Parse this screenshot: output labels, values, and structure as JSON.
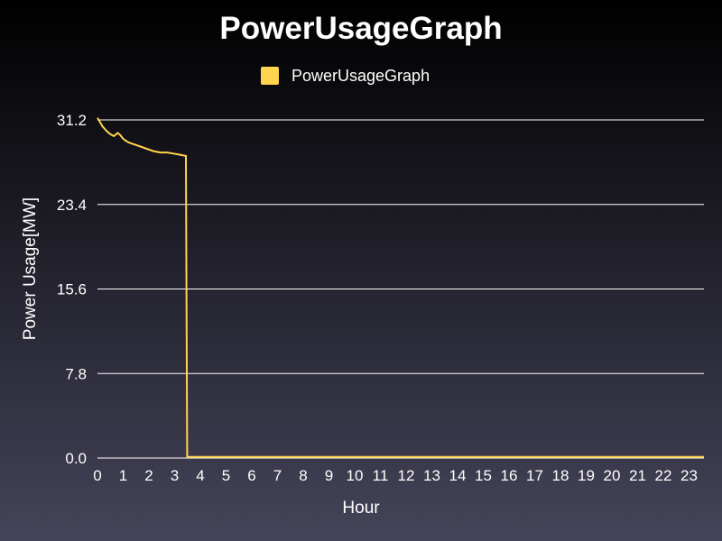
{
  "colors": {
    "series": "#ffd54f",
    "grid": "#ffffff",
    "text": "#ffffff",
    "bg_top": "#000000",
    "bg_bottom": "#45445a"
  },
  "chart_data": {
    "type": "line",
    "title": "PowerUsageGraph",
    "xlabel": "Hour",
    "ylabel": "Power Usage[MW]",
    "xlim": [
      0,
      24
    ],
    "ylim": [
      0,
      31.2
    ],
    "yticks": [
      "0.0",
      "7.8",
      "15.6",
      "23.4",
      "31.2"
    ],
    "xticks": [
      "0",
      "1",
      "2",
      "3",
      "4",
      "5",
      "6",
      "7",
      "8",
      "9",
      "10",
      "11",
      "12",
      "13",
      "14",
      "15",
      "16",
      "17",
      "18",
      "19",
      "20",
      "21",
      "22",
      "23"
    ],
    "legend": "top-center",
    "grid": "horizontal",
    "series": [
      {
        "name": "PowerUsageGraph",
        "x": [
          0,
          0.1,
          0.2,
          0.35,
          0.5,
          0.65,
          0.8,
          0.9,
          1.0,
          1.1,
          1.25,
          1.5,
          1.75,
          2.0,
          2.25,
          2.5,
          2.75,
          3.0,
          3.25,
          3.45,
          3.5,
          3.55,
          24
        ],
        "y": [
          31.4,
          31.0,
          30.6,
          30.2,
          29.9,
          29.7,
          30.0,
          29.8,
          29.5,
          29.3,
          29.1,
          28.9,
          28.7,
          28.5,
          28.3,
          28.2,
          28.2,
          28.1,
          28.0,
          27.9,
          27.9,
          0.1,
          0.1
        ]
      }
    ]
  }
}
